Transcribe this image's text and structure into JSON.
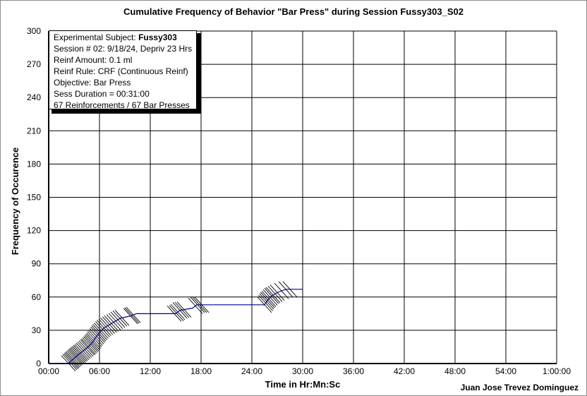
{
  "chart_data": {
    "type": "line",
    "title": "Cumulative Frequency of Behavior \"Bar Press\" during Session Fussy303_S02",
    "xlabel": "Time in Hr:Mn:Sc",
    "ylabel": "Frequency of Occurence",
    "credit": "Juan Jose Trevez Dominguez",
    "grid": true,
    "legend": "none",
    "xlim": [
      "00:00",
      "1:00:00"
    ],
    "x_tick_labels": [
      "00:00",
      "06:00",
      "12:00",
      "18:00",
      "24:00",
      "30:00",
      "36:00",
      "42:00",
      "48:00",
      "54:00",
      "1:00:00"
    ],
    "ylim": [
      0,
      300
    ],
    "y_tick_labels": [
      "0",
      "30",
      "60",
      "90",
      "120",
      "150",
      "180",
      "210",
      "240",
      "270",
      "300"
    ],
    "info_box": {
      "subject_prefix": "Experimental Subject: ",
      "subject_name": "Fussy303",
      "lines": [
        "Session # 02: 9/18/24, Depriv 23 Hrs",
        "Reinf Amount: 0.1 ml",
        "Reinf Rule: CRF (Continuous Reinf)",
        "Objective: Bar Press",
        "Sess Duration = 00:31:00",
        "67 Reinforcements / 67 Bar Presses"
      ]
    },
    "line_color": "#00008b",
    "series": [
      {
        "values": [
          {
            "x": "00:00",
            "y": 0
          },
          {
            "x": "02:18",
            "y": 0
          },
          {
            "x": "02:45",
            "y": 3
          },
          {
            "x": "03:20",
            "y": 7
          },
          {
            "x": "04:00",
            "y": 11
          },
          {
            "x": "04:40",
            "y": 15
          },
          {
            "x": "05:10",
            "y": 19
          },
          {
            "x": "05:30",
            "y": 23
          },
          {
            "x": "06:00",
            "y": 28
          },
          {
            "x": "06:30",
            "y": 32
          },
          {
            "x": "07:10",
            "y": 35
          },
          {
            "x": "07:50",
            "y": 38
          },
          {
            "x": "08:30",
            "y": 41
          },
          {
            "x": "09:45",
            "y": 43
          },
          {
            "x": "10:20",
            "y": 45
          },
          {
            "x": "15:00",
            "y": 45
          },
          {
            "x": "15:30",
            "y": 48
          },
          {
            "x": "17:00",
            "y": 50
          },
          {
            "x": "17:30",
            "y": 53
          },
          {
            "x": "25:30",
            "y": 53
          },
          {
            "x": "25:50",
            "y": 57
          },
          {
            "x": "26:20",
            "y": 61
          },
          {
            "x": "27:00",
            "y": 64
          },
          {
            "x": "28:00",
            "y": 67
          },
          {
            "x": "30:00",
            "y": 67
          }
        ]
      }
    ],
    "reinforcement_times": [
      "02:20",
      "02:30",
      "02:38",
      "02:45",
      "02:52",
      "03:00",
      "03:08",
      "03:15",
      "03:22",
      "03:30",
      "03:38",
      "03:46",
      "03:55",
      "04:05",
      "04:15",
      "04:25",
      "04:35",
      "04:42",
      "04:50",
      "04:58",
      "05:05",
      "05:12",
      "05:18",
      "05:25",
      "05:32",
      "05:40",
      "05:48",
      "05:55",
      "06:03",
      "06:12",
      "06:22",
      "06:32",
      "06:45",
      "06:58",
      "07:12",
      "07:25",
      "07:40",
      "07:55",
      "08:10",
      "08:25",
      "08:40",
      "09:40",
      "09:50",
      "10:00",
      "14:50",
      "15:05",
      "15:15",
      "15:30",
      "15:45",
      "16:00",
      "17:20",
      "17:35",
      "17:50",
      "18:05",
      "25:30",
      "25:38",
      "25:45",
      "25:52",
      "26:00",
      "26:10",
      "26:20",
      "26:30",
      "26:45",
      "27:00",
      "27:30",
      "28:00",
      "28:30"
    ]
  }
}
